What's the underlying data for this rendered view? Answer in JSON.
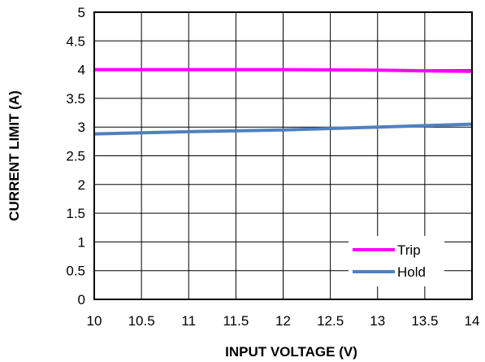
{
  "chart_data": {
    "type": "line",
    "xlabel": "INPUT VOLTAGE  (V)",
    "ylabel": "CURRENT  LIMIT  (A)",
    "xlim": [
      10,
      14
    ],
    "ylim": [
      0,
      5
    ],
    "x_ticks": [
      "10",
      "10.5",
      "11",
      "11.5",
      "12",
      "12.5",
      "13",
      "13.5",
      "14"
    ],
    "y_ticks": [
      "0",
      "0.5",
      "1",
      "1.5",
      "2",
      "2.5",
      "3",
      "3.5",
      "4",
      "4.5",
      "5"
    ],
    "grid": true,
    "legend_position": "bottom-right",
    "series": [
      {
        "name": "Trip",
        "color": "#FF00FF",
        "x": [
          10,
          11,
          12,
          13,
          14
        ],
        "y": [
          4.0,
          4.0,
          4.0,
          3.99,
          3.97
        ]
      },
      {
        "name": "Hold",
        "color": "#4F81BD",
        "x": [
          10,
          11,
          12,
          13,
          14
        ],
        "y": [
          2.88,
          2.92,
          2.95,
          3.0,
          3.05
        ]
      }
    ]
  }
}
